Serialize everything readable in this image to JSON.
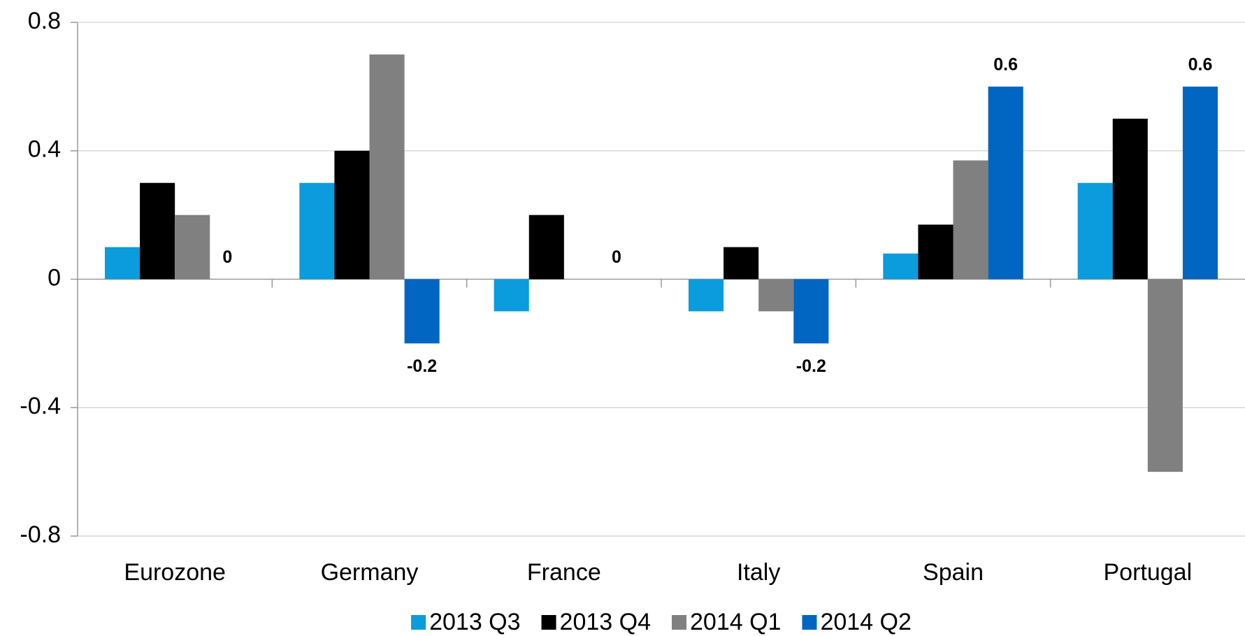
{
  "chart_data": {
    "type": "bar",
    "categories": [
      "Eurozone",
      "Germany",
      "France",
      "Italy",
      "Spain",
      "Portugal"
    ],
    "series": [
      {
        "name": "2013 Q3",
        "color": "#0a9cdc",
        "values": [
          0.1,
          0.3,
          -0.1,
          -0.1,
          0.08,
          0.3
        ]
      },
      {
        "name": "2013 Q4",
        "color": "#000000",
        "values": [
          0.3,
          0.4,
          0.2,
          0.1,
          0.17,
          0.5
        ]
      },
      {
        "name": "2014 Q1",
        "color": "#808080",
        "values": [
          0.2,
          0.7,
          0,
          -0.1,
          0.37,
          -0.6
        ]
      },
      {
        "name": "2014 Q2",
        "color": "#0066c1",
        "values": [
          0,
          -0.2,
          0,
          -0.2,
          0.6,
          0.6
        ],
        "data_labels": true
      }
    ],
    "ylim": [
      -0.8,
      0.8
    ],
    "yticks": [
      0.8,
      0.4,
      0,
      -0.4,
      -0.8
    ],
    "grid": true,
    "legend": "bottom"
  }
}
